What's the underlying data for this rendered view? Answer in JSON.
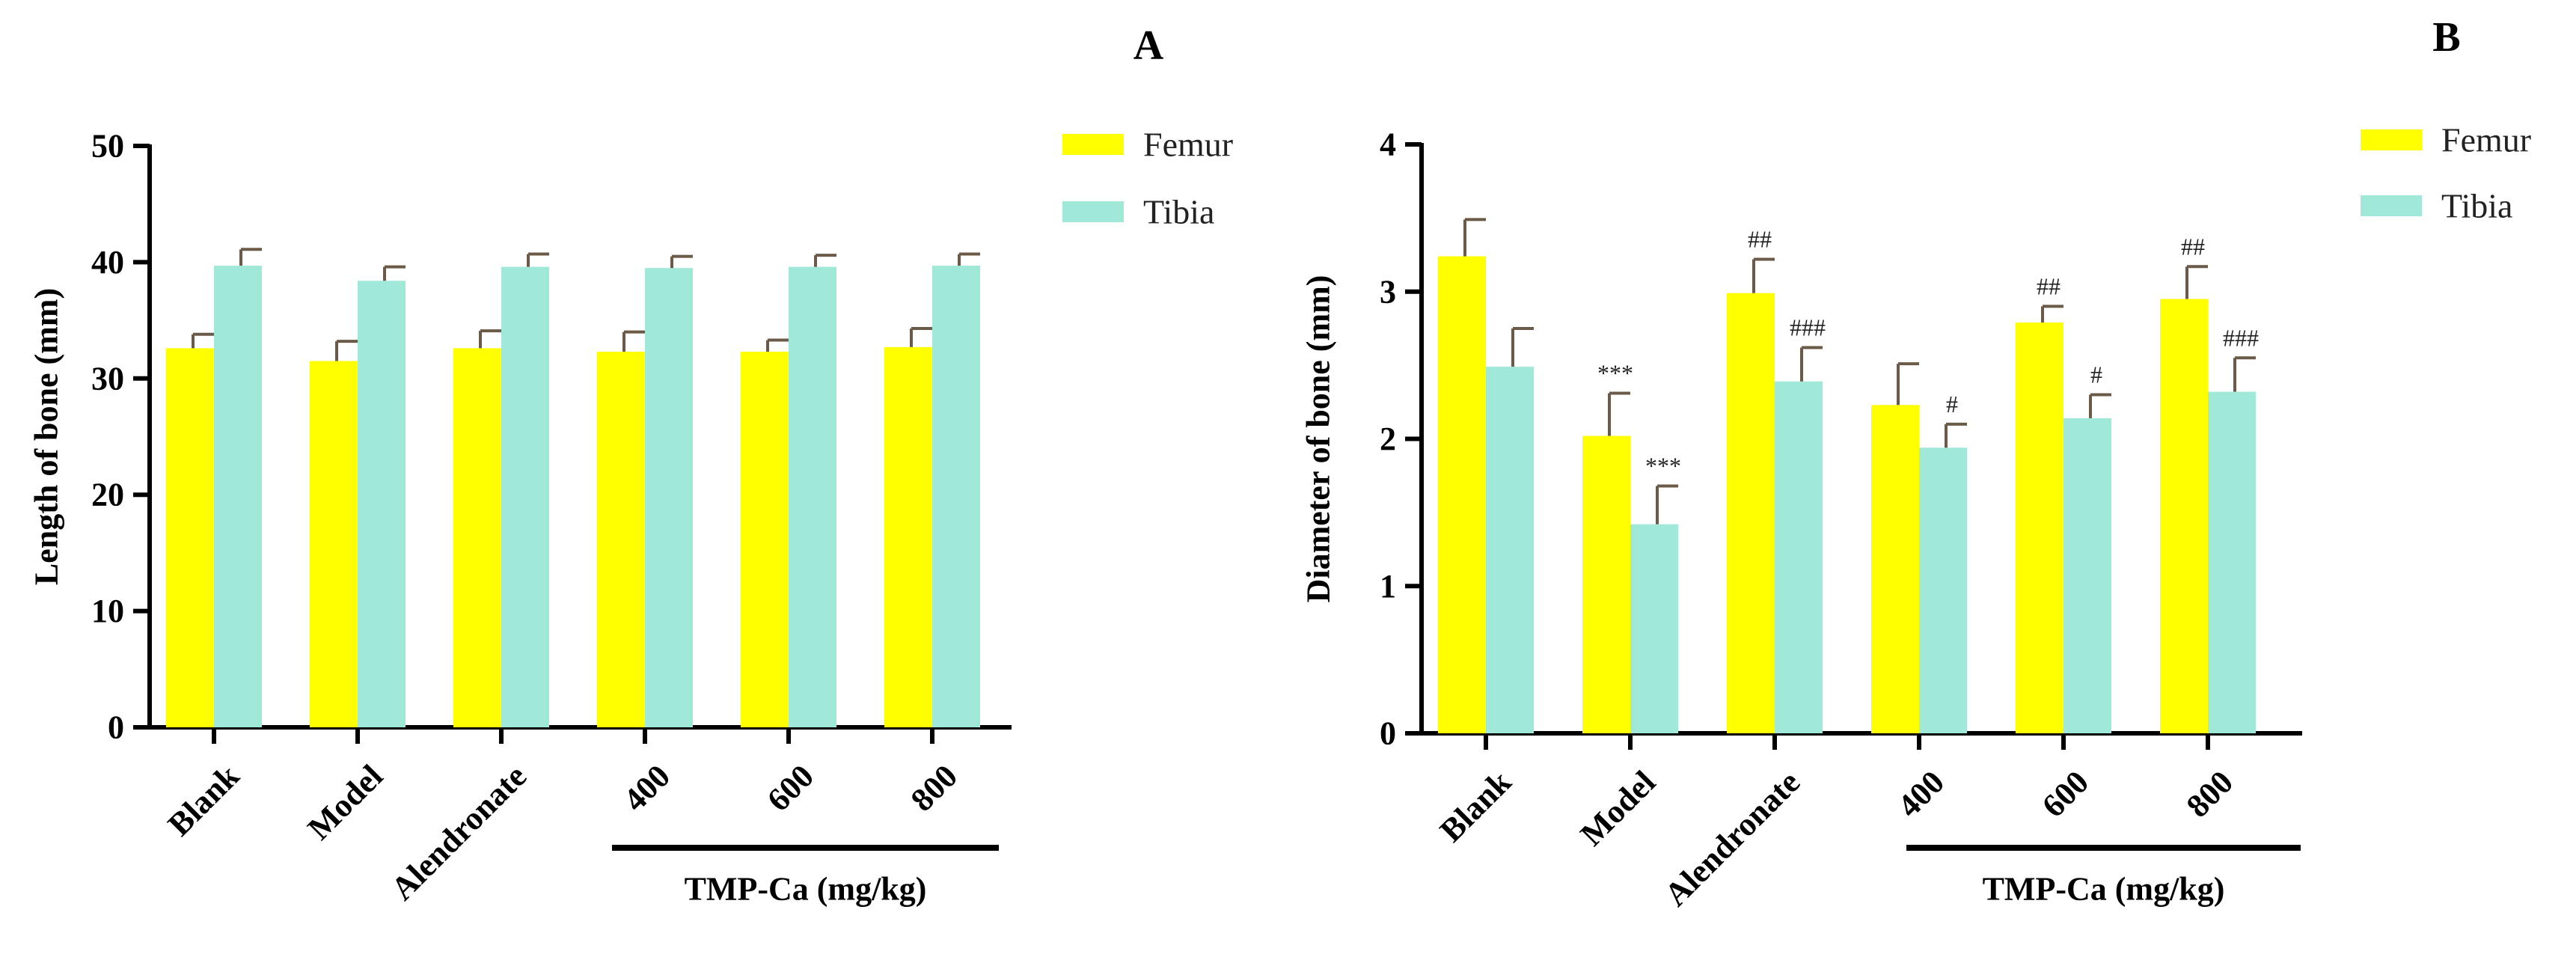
{
  "figure": {
    "colors": {
      "femur": "#FFFF00",
      "tibia": "#A0E8D8",
      "error": "#6b5a48",
      "axis": "#000000"
    }
  },
  "chart_data": [
    {
      "panel": "A",
      "type": "bar",
      "categories": [
        "Blank",
        "Model",
        "Alendronate",
        "400",
        "600",
        "800"
      ],
      "group_label": "TMP-Ca (mg/kg)",
      "series": [
        {
          "name": "Femur",
          "values": [
            32.6,
            31.5,
            32.6,
            32.3,
            32.3,
            32.7
          ],
          "errors": [
            1.2,
            1.7,
            1.5,
            1.7,
            1.0,
            1.6
          ],
          "annotations": [
            "",
            "",
            "",
            "",
            "",
            ""
          ]
        },
        {
          "name": "Tibia",
          "values": [
            39.7,
            38.4,
            39.6,
            39.5,
            39.6,
            39.7
          ],
          "errors": [
            1.4,
            1.2,
            1.1,
            1.0,
            1.0,
            1.0
          ],
          "annotations": [
            "",
            "",
            "",
            "",
            "",
            ""
          ]
        }
      ],
      "ylabel": "Length of bone (mm)",
      "xlabel": "",
      "ylim": [
        0,
        50
      ],
      "yticks": [
        0,
        10,
        20,
        30,
        40,
        50
      ],
      "legend_position": "top-right"
    },
    {
      "panel": "B",
      "type": "bar",
      "categories": [
        "Blank",
        "Model",
        "Alendronate",
        "400",
        "600",
        "800"
      ],
      "group_label": "TMP-Ca (mg/kg)",
      "series": [
        {
          "name": "Femur",
          "values": [
            3.24,
            2.02,
            2.99,
            2.23,
            2.79,
            2.95
          ],
          "errors": [
            0.25,
            0.29,
            0.23,
            0.28,
            0.11,
            0.22
          ],
          "annotations": [
            "",
            "***",
            "##",
            "",
            "##",
            "##"
          ]
        },
        {
          "name": "Tibia",
          "values": [
            2.49,
            1.42,
            2.39,
            1.94,
            2.14,
            2.32
          ],
          "errors": [
            0.26,
            0.26,
            0.23,
            0.16,
            0.16,
            0.23
          ],
          "annotations": [
            "",
            "***",
            "###",
            "#",
            "#",
            "###"
          ]
        }
      ],
      "ylabel": "Diameter of bone (mm)",
      "xlabel": "",
      "ylim": [
        0,
        4
      ],
      "yticks": [
        0,
        1,
        2,
        3,
        4
      ],
      "legend_position": "top-right"
    }
  ]
}
